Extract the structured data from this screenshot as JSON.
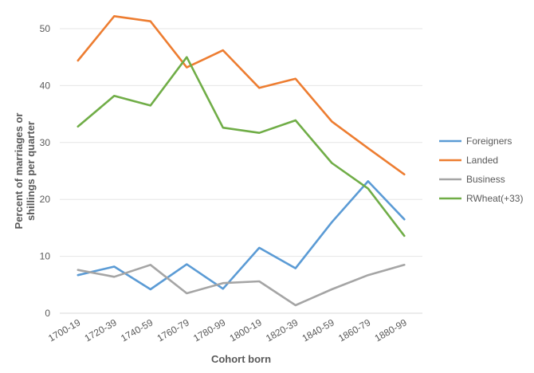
{
  "chart_data": {
    "type": "line",
    "title": "",
    "xlabel": "Cohort born",
    "ylabel": "Percent of marriages or shillings per quarter",
    "ylabel_lines": [
      "Percent of marriages or",
      "shillings per quarter"
    ],
    "categories": [
      "1700-19",
      "1720-39",
      "1740-59",
      "1760-79",
      "1780-99",
      "1800-19",
      "1820-39",
      "1840-59",
      "1860-79",
      "1880-99"
    ],
    "ylim": [
      0,
      50
    ],
    "yticks": [
      0,
      10,
      20,
      30,
      40,
      50
    ],
    "grid": true,
    "legend_position": "right",
    "series": [
      {
        "name": "Foreigners",
        "color": "#5B9BD5",
        "values": [
          6.7,
          8.2,
          4.2,
          8.6,
          4.3,
          11.5,
          7.9,
          16.0,
          23.2,
          16.5
        ]
      },
      {
        "name": "Landed",
        "color": "#ED7D31",
        "values": [
          44.4,
          52.2,
          51.3,
          43.2,
          46.2,
          39.6,
          41.2,
          33.7,
          29.0,
          24.4
        ]
      },
      {
        "name": "Business",
        "color": "#A5A5A5",
        "values": [
          7.6,
          6.4,
          8.5,
          3.5,
          5.3,
          5.6,
          1.4,
          4.2,
          6.7,
          8.5
        ]
      },
      {
        "name": "RWheat(+33)",
        "color": "#70AD47",
        "values": [
          32.8,
          38.2,
          36.5,
          45.0,
          32.6,
          31.7,
          33.9,
          26.4,
          21.9,
          13.6
        ]
      }
    ]
  }
}
